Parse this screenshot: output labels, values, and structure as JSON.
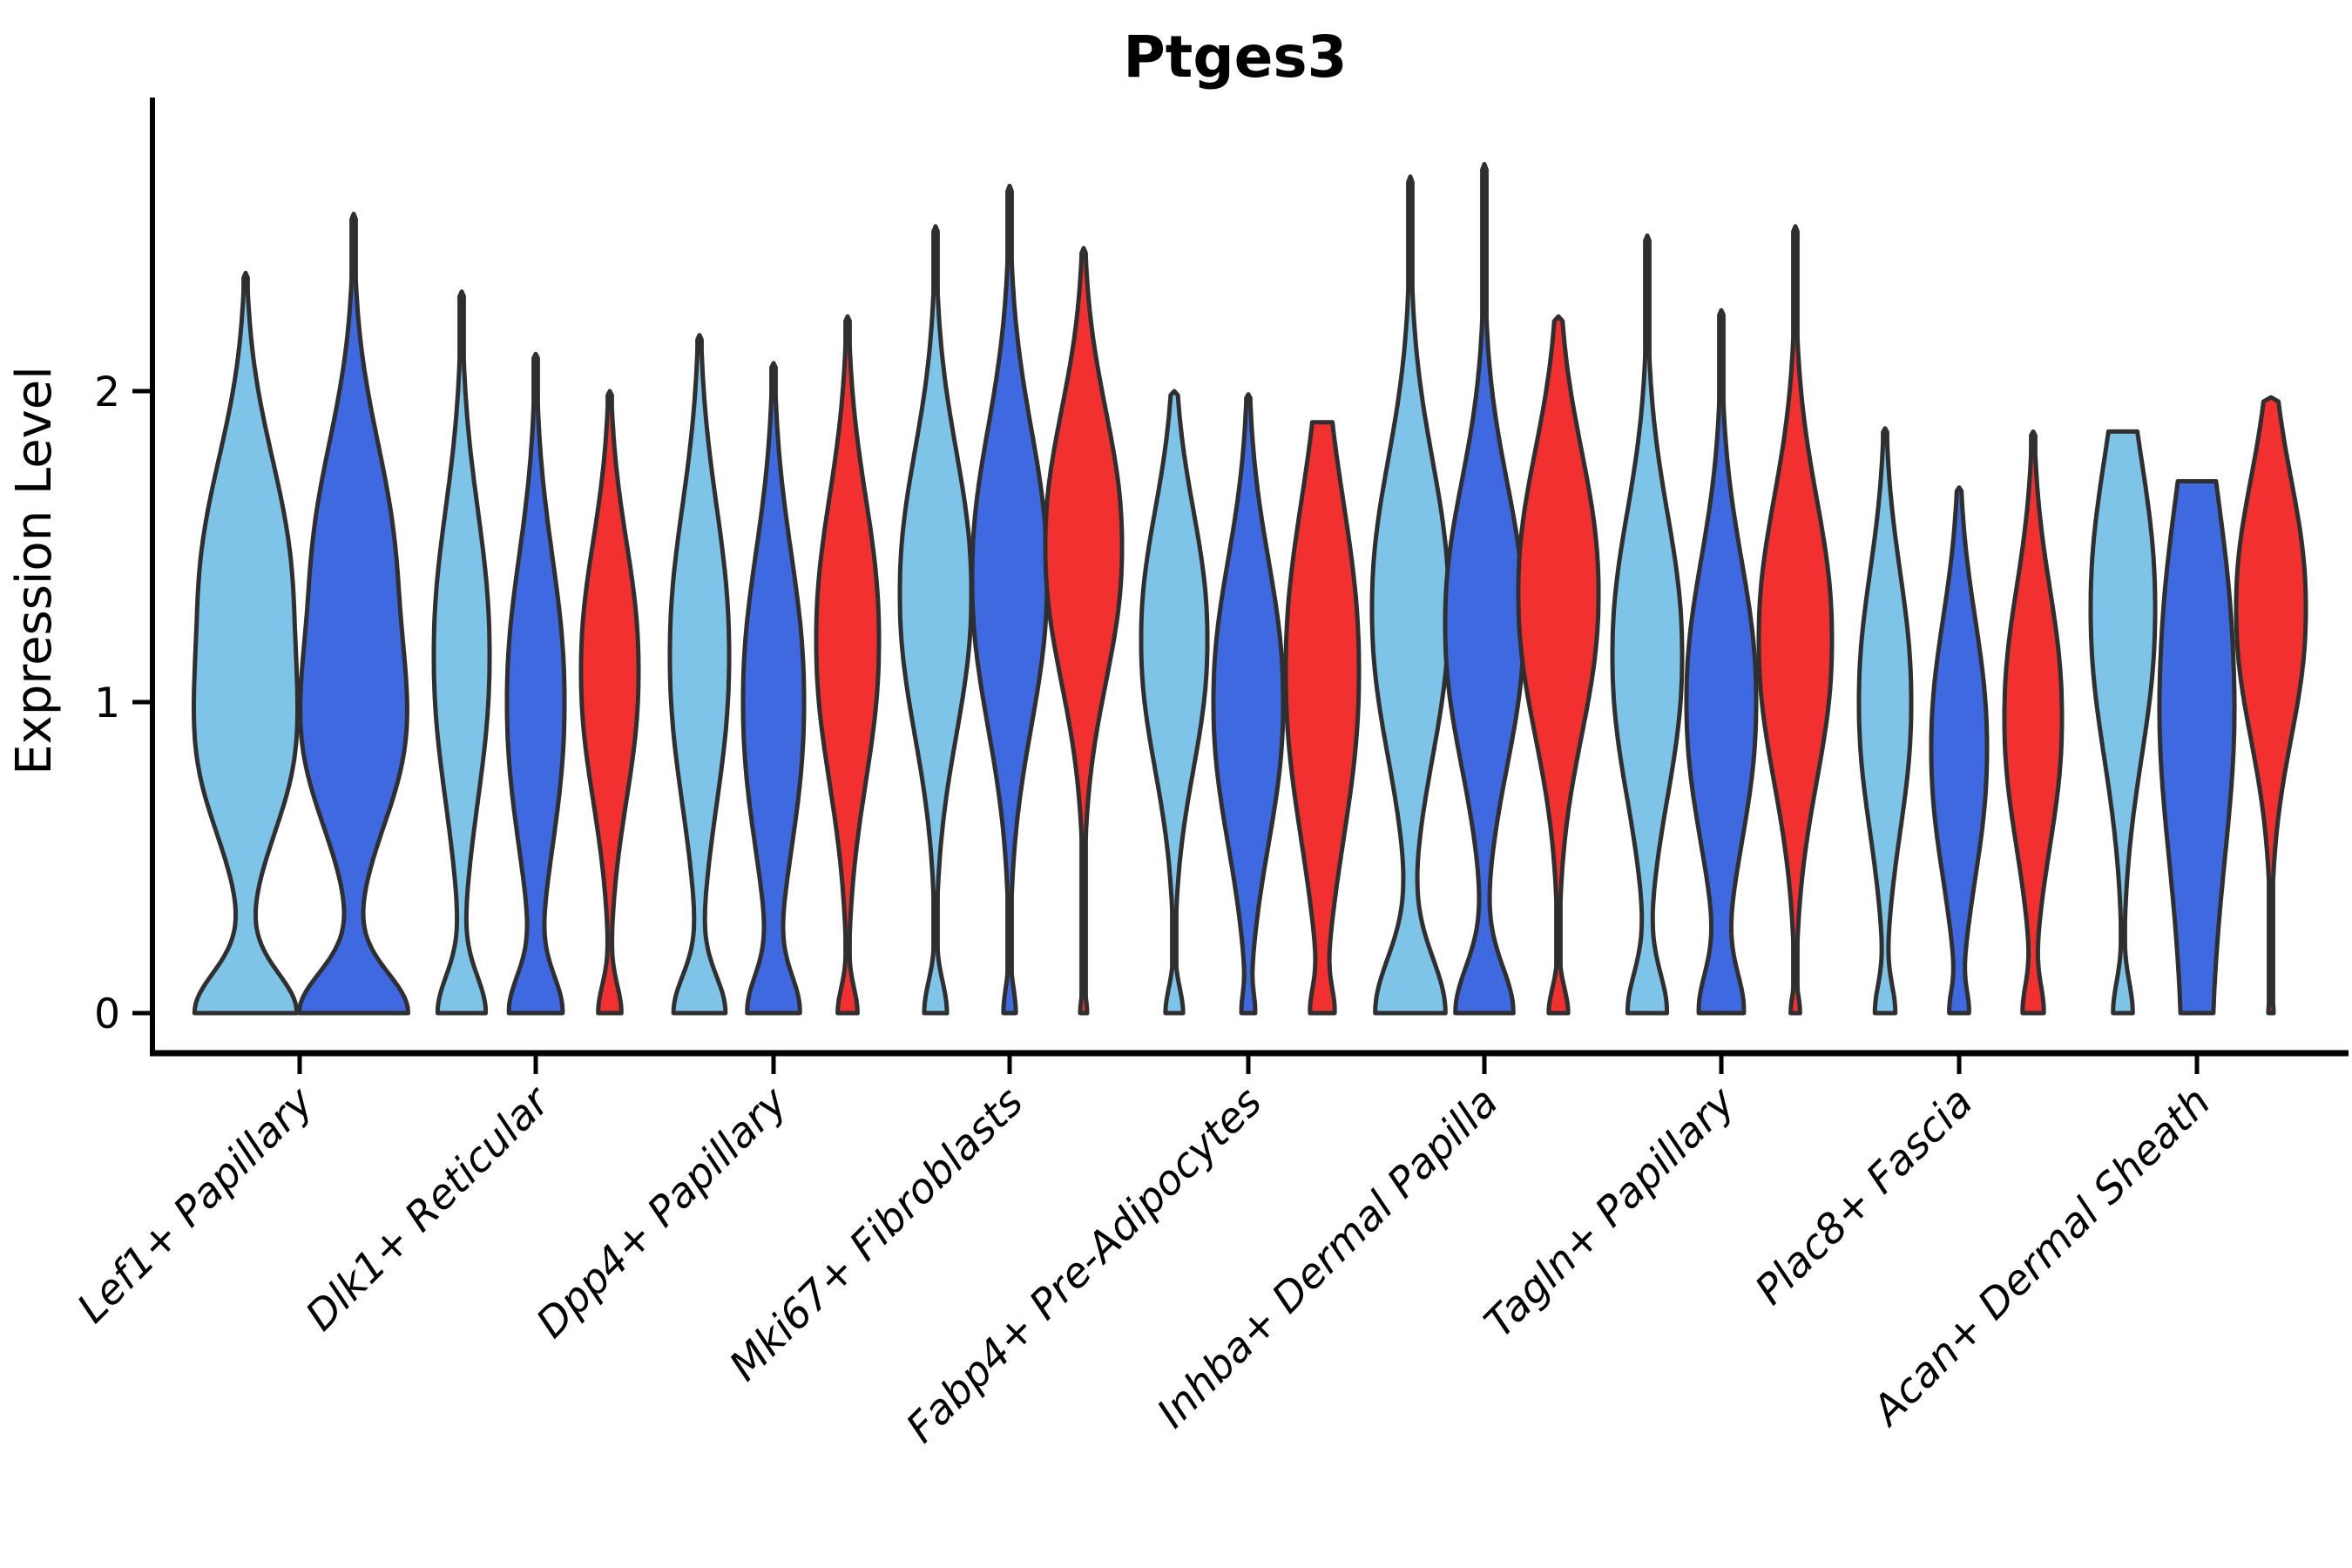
{
  "figure": {
    "title": "Ptges3"
  },
  "palette": {
    "light_blue": "#7EC3E8",
    "royal_blue": "#3E69E1",
    "red": "#F23030",
    "outline": "#2F2F2F",
    "axis": "#000000"
  },
  "chart_data": {
    "type": "violin",
    "title": "Ptges3",
    "xlabel": "",
    "ylabel": "Expression Level",
    "yticks": [
      0,
      1,
      2
    ],
    "ylim": [
      -0.13,
      2.94
    ],
    "grid": false,
    "legend": "none",
    "split_colors": [
      "light_blue",
      "royal_blue",
      "red"
    ],
    "categories": [
      "Lef1+ Papillary",
      "Dlk1+ Reticular",
      "Dpp4+ Papillary",
      "Mki67+ Fibroblasts",
      "Fabp4+ Pre-Adipocytes",
      "Inhba+ Dermal Papilla",
      "Tagln+ Papillary",
      "Plac8+ Fascia",
      "Acan+ Dermal Sheath"
    ],
    "groups": [
      {
        "category": "Lef1+ Papillary",
        "violins": [
          {
            "color": "light_blue",
            "dx": -62,
            "max": 2.38,
            "flat_top": false,
            "profile": [
              [
                1.25,
                0.5,
                55,
                2.4
              ],
              [
                0.75,
                0.22,
                18,
                2
              ],
              [
                0,
                0.13,
                58,
                2
              ]
            ]
          },
          {
            "color": "royal_blue",
            "dx": 62,
            "max": 2.57,
            "flat_top": false,
            "profile": [
              [
                1.3,
                0.5,
                50,
                2.4
              ],
              [
                0.8,
                0.25,
                25,
                2
              ],
              [
                0,
                0.13,
                62,
                2
              ]
            ]
          }
        ]
      },
      {
        "category": "Dlk1+ Reticular",
        "violins": [
          {
            "color": "light_blue",
            "dx": -85,
            "max": 2.32,
            "flat_top": false,
            "profile": [
              [
                1.15,
                0.45,
                32,
                2.2
              ],
              [
                0,
                0.12,
                27,
                2
              ]
            ]
          },
          {
            "color": "royal_blue",
            "dx": 0,
            "max": 2.12,
            "flat_top": false,
            "profile": [
              [
                1.0,
                0.45,
                33,
                2.2
              ],
              [
                0,
                0.12,
                29,
                2
              ]
            ]
          },
          {
            "color": "red",
            "dx": 85,
            "max": 2.0,
            "flat_top": false,
            "profile": [
              [
                1.1,
                0.4,
                33,
                2.2
              ],
              [
                0,
                0.09,
                13,
                2
              ]
            ]
          }
        ]
      },
      {
        "category": "Dpp4+ Papillary",
        "violins": [
          {
            "color": "light_blue",
            "dx": -85,
            "max": 2.18,
            "flat_top": false,
            "profile": [
              [
                1.15,
                0.46,
                34,
                2.2
              ],
              [
                0,
                0.12,
                29,
                2
              ]
            ]
          },
          {
            "color": "royal_blue",
            "dx": 0,
            "max": 2.09,
            "flat_top": false,
            "profile": [
              [
                1.0,
                0.46,
                35,
                2.2
              ],
              [
                0,
                0.12,
                28,
                2
              ]
            ]
          },
          {
            "color": "red",
            "dx": 85,
            "max": 2.24,
            "flat_top": false,
            "profile": [
              [
                1.2,
                0.44,
                36,
                2.2
              ],
              [
                0,
                0.08,
                11,
                2
              ]
            ]
          }
        ]
      },
      {
        "category": "Mki67+ Fibroblasts",
        "violins": [
          {
            "color": "light_blue",
            "dx": -85,
            "max": 2.53,
            "flat_top": false,
            "profile": [
              [
                1.35,
                0.44,
                41,
                2.2
              ],
              [
                0,
                0.1,
                13,
                2
              ]
            ]
          },
          {
            "color": "royal_blue",
            "dx": 0,
            "max": 2.66,
            "flat_top": false,
            "profile": [
              [
                1.4,
                0.46,
                43,
                2.2
              ],
              [
                0,
                0.08,
                7,
                2
              ]
            ]
          },
          {
            "color": "red",
            "dx": 85,
            "max": 2.46,
            "flat_top": false,
            "profile": [
              [
                1.5,
                0.42,
                44,
                2.2
              ],
              [
                0,
                0.05,
                4,
                2
              ]
            ]
          }
        ]
      },
      {
        "category": "Fabp4+ Pre-Adipocytes",
        "violins": [
          {
            "color": "light_blue",
            "dx": -85,
            "max": 2.0,
            "flat_top": false,
            "profile": [
              [
                1.2,
                0.4,
                38,
                2.2
              ],
              [
                0,
                0.08,
                10,
                2
              ]
            ]
          },
          {
            "color": "royal_blue",
            "dx": 0,
            "max": 1.99,
            "flat_top": false,
            "profile": [
              [
                1.0,
                0.44,
                40,
                2.2
              ],
              [
                0,
                0.06,
                6,
                2
              ]
            ]
          },
          {
            "color": "red",
            "dx": 85,
            "max": 1.9,
            "flat_top": true,
            "profile": [
              [
                1.1,
                0.52,
                42,
                2.2
              ],
              [
                0,
                0.08,
                11,
                2
              ]
            ]
          }
        ]
      },
      {
        "category": "Inhba+ Dermal Papilla",
        "violins": [
          {
            "color": "light_blue",
            "dx": -85,
            "max": 2.69,
            "flat_top": false,
            "profile": [
              [
                1.3,
                0.46,
                44,
                2.2
              ],
              [
                0,
                0.18,
                40,
                2
              ]
            ]
          },
          {
            "color": "royal_blue",
            "dx": 0,
            "max": 2.73,
            "flat_top": false,
            "profile": [
              [
                1.25,
                0.44,
                45,
                2.2
              ],
              [
                0,
                0.15,
                33,
                2
              ]
            ]
          },
          {
            "color": "red",
            "dx": 85,
            "max": 2.24,
            "flat_top": false,
            "profile": [
              [
                1.35,
                0.44,
                46,
                2.2
              ],
              [
                0,
                0.08,
                11,
                2
              ]
            ]
          }
        ]
      },
      {
        "category": "Tagln+ Papillary",
        "violins": [
          {
            "color": "light_blue",
            "dx": -85,
            "max": 2.5,
            "flat_top": false,
            "profile": [
              [
                1.15,
                0.44,
                40,
                2.2
              ],
              [
                0,
                0.13,
                22,
                2
              ]
            ]
          },
          {
            "color": "royal_blue",
            "dx": 0,
            "max": 2.26,
            "flat_top": false,
            "profile": [
              [
                1.0,
                0.44,
                40,
                2.2
              ],
              [
                0,
                0.13,
                24,
                2
              ]
            ]
          },
          {
            "color": "red",
            "dx": 85,
            "max": 2.53,
            "flat_top": false,
            "profile": [
              [
                1.2,
                0.44,
                42,
                2.2
              ],
              [
                0,
                0.05,
                5,
                2
              ]
            ]
          }
        ]
      },
      {
        "category": "Plac8+ Fascia",
        "violins": [
          {
            "color": "light_blue",
            "dx": -85,
            "max": 1.88,
            "flat_top": false,
            "profile": [
              [
                1.0,
                0.4,
                30,
                2.2
              ],
              [
                0,
                0.09,
                11,
                2
              ]
            ]
          },
          {
            "color": "royal_blue",
            "dx": 0,
            "max": 1.69,
            "flat_top": false,
            "profile": [
              [
                0.85,
                0.4,
                32,
                2.2
              ],
              [
                0,
                0.07,
                9,
                2
              ]
            ]
          },
          {
            "color": "red",
            "dx": 85,
            "max": 1.87,
            "flat_top": false,
            "profile": [
              [
                0.95,
                0.4,
                33,
                2.2
              ],
              [
                0,
                0.09,
                11,
                2
              ]
            ]
          }
        ]
      },
      {
        "category": "Acan+ Dermal Sheath",
        "violins": [
          {
            "color": "light_blue",
            "dx": -85,
            "max": 1.87,
            "flat_top": true,
            "profile": [
              [
                1.3,
                0.46,
                37,
                2.2
              ],
              [
                0,
                0.1,
                11,
                2
              ]
            ]
          },
          {
            "color": "royal_blue",
            "dx": 0,
            "max": 1.71,
            "flat_top": true,
            "profile": [
              [
                1.15,
                0.55,
                36,
                2.2
              ],
              [
                0,
                0.9,
                16,
                3
              ]
            ]
          },
          {
            "color": "red",
            "dx": 85,
            "max": 1.98,
            "flat_top": false,
            "profile": [
              [
                1.3,
                0.4,
                40,
                2.2
              ],
              [
                0,
                0.04,
                3,
                2
              ]
            ]
          }
        ]
      }
    ]
  }
}
